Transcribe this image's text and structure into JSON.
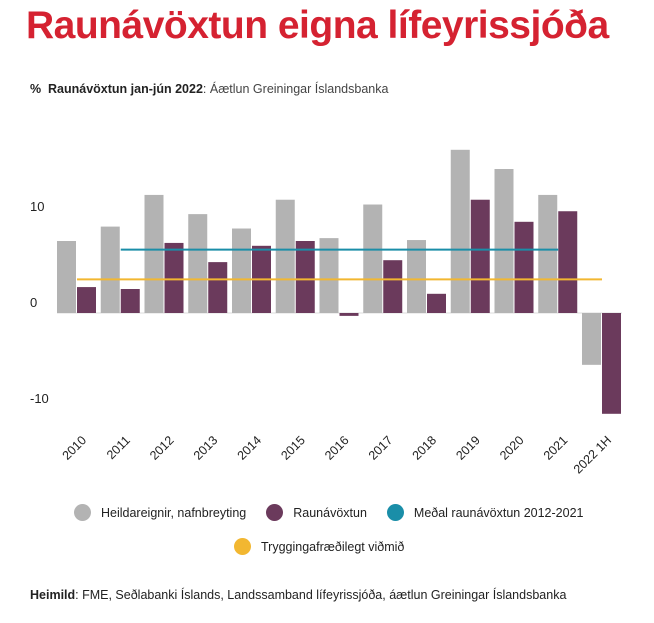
{
  "title": "Raunávöxtun eigna lífeyrissjóða",
  "subtitle": {
    "unit": "%",
    "bold": "Raunávöxtun jan-jún 2022",
    "rest": ": Áætlun Greiningar Íslandsbanka"
  },
  "legend": [
    {
      "label": "Heildareignir, nafnbreyting",
      "color": "#b3b3b3"
    },
    {
      "label": "Raunávöxtun",
      "color": "#6b3a5c"
    },
    {
      "label": "Meðal raunávöxtun 2012-2021",
      "color": "#1a8ea8"
    },
    {
      "label": "Tryggingafræðilegt viðmið",
      "color": "#f2b731"
    }
  ],
  "source": {
    "bold": "Heimild",
    "rest": ": FME, Seðlabanki Íslands, Landssamband lífeyrissjóða, áætlun Greiningar Íslandsbanka"
  },
  "chart_data": {
    "type": "bar",
    "categories": [
      "2010",
      "2011",
      "2012",
      "2013",
      "2014",
      "2015",
      "2016",
      "2017",
      "2018",
      "2019",
      "2020",
      "2021",
      "2022 1H"
    ],
    "series": [
      {
        "name": "Heildareignir, nafnbreyting",
        "color": "#b3b3b3",
        "values": [
          7.5,
          9.0,
          12.3,
          10.3,
          8.8,
          11.8,
          7.8,
          11.3,
          7.6,
          17.0,
          15.0,
          12.3,
          -5.4
        ]
      },
      {
        "name": "Raunávöxtun",
        "color": "#6b3a5c",
        "values": [
          2.7,
          2.5,
          7.3,
          5.3,
          7.0,
          7.5,
          -0.3,
          5.5,
          2.0,
          11.8,
          9.5,
          10.6,
          -10.5
        ]
      }
    ],
    "reference_lines": [
      {
        "name": "Meðal raunávöxtun 2012-2021",
        "value": 6.6,
        "from": "2011",
        "to": "2021",
        "color": "#1a8ea8"
      },
      {
        "name": "Tryggingafræðilegt viðmið",
        "value": 3.5,
        "from": "2010",
        "to": "2022 1H",
        "color": "#f2b731"
      }
    ],
    "yticks": [
      10,
      0,
      -10
    ],
    "ylim": [
      -13,
      18
    ],
    "grid": false
  }
}
